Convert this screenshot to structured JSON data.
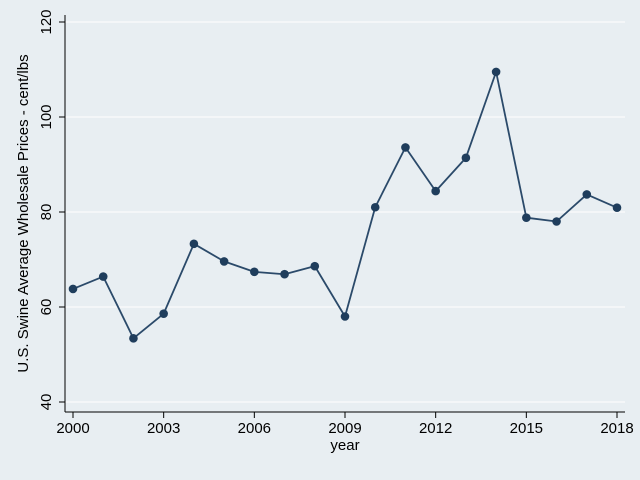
{
  "chart_data": {
    "type": "line",
    "title": "",
    "xlabel": "year",
    "ylabel": "U.S. Swine Average Wholesale Prices - cent/lbs",
    "x_ticks": [
      2000,
      2003,
      2006,
      2009,
      2012,
      2015,
      2018
    ],
    "y_ticks": [
      40,
      60,
      80,
      100,
      120
    ],
    "xlim": [
      2000,
      2018
    ],
    "ylim": [
      40,
      120
    ],
    "grid": true,
    "legend": "none",
    "series": [
      {
        "x": [
          2000,
          2001,
          2002,
          2003,
          2004,
          2005,
          2006,
          2007,
          2008,
          2009,
          2010,
          2011,
          2012,
          2013,
          2014,
          2015,
          2016,
          2017,
          2018
        ],
        "values": [
          63.8,
          66.4,
          53.4,
          58.6,
          73.3,
          69.6,
          67.4,
          66.9,
          68.6,
          58.0,
          81.0,
          93.6,
          84.4,
          91.4,
          109.5,
          78.8,
          78.0,
          83.7,
          80.9
        ]
      }
    ],
    "colors": {
      "line": "#2b4a6a",
      "marker": "#1f3d5c",
      "background": "#e8eef2",
      "grid": "#ffffff",
      "axis": "#000000"
    }
  }
}
